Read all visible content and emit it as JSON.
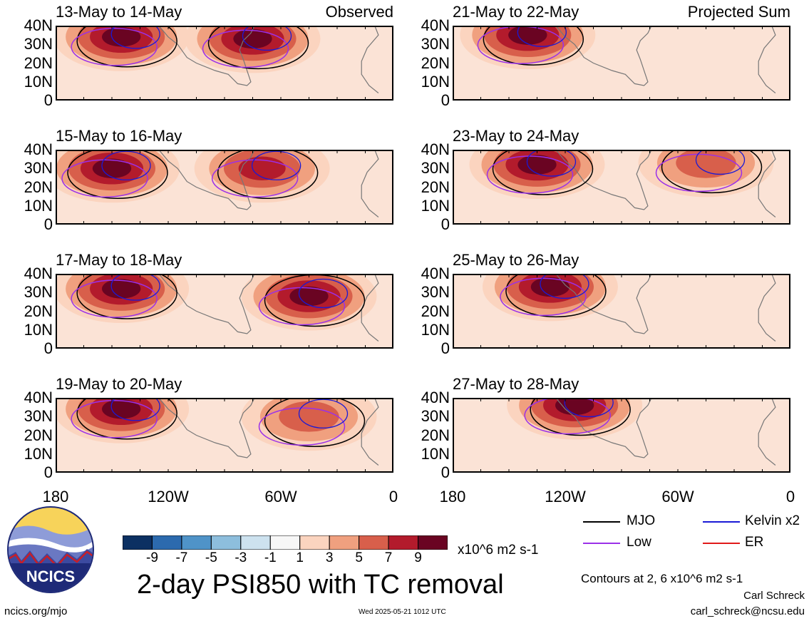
{
  "chart_data": {
    "type": "heatmap",
    "title": "2-day PSI850 with TC removal",
    "units": "x10^6 m2 s-1",
    "contour_note": "Contours at 2, 6 x10^6 m2 s-1",
    "columns": [
      "Observed",
      "Projected Sum"
    ],
    "x_ticks": [
      "180",
      "120W",
      "60W",
      "0"
    ],
    "y_ticks": [
      "40N",
      "30N",
      "20N",
      "10N",
      "0"
    ],
    "xlim": [
      -180,
      0
    ],
    "ylim": [
      0,
      40
    ],
    "colorbar_ticks": [
      "-9",
      "-7",
      "-5",
      "-3",
      "-1",
      "1",
      "3",
      "5",
      "7",
      "9"
    ],
    "colorbar_colors": [
      "#0c3062",
      "#2c6aae",
      "#4f93c8",
      "#8dbedd",
      "#cde2ef",
      "#f7f7f7",
      "#fbd4bf",
      "#f0a07f",
      "#d85f4b",
      "#b31b2c",
      "#6a0422"
    ],
    "contour_legend": [
      {
        "name": "MJO",
        "color": "#000000"
      },
      {
        "name": "Kelvin x2",
        "color": "#1a1ad6"
      },
      {
        "name": "Low",
        "color": "#9b30e8"
      },
      {
        "name": "ER",
        "color": "#e01a1a"
      }
    ],
    "panels": [
      {
        "period": "13-May to 14-May",
        "label": "Observed",
        "anomaly_maxima": [
          {
            "lon": -145,
            "lat": 34,
            "value": 9
          },
          {
            "lon": -75,
            "lat": 33,
            "value": 9
          }
        ]
      },
      {
        "period": "15-May to 16-May",
        "label": "",
        "anomaly_maxima": [
          {
            "lon": -150,
            "lat": 30,
            "value": 9
          },
          {
            "lon": -70,
            "lat": 30,
            "value": 7
          }
        ]
      },
      {
        "period": "17-May to 18-May",
        "label": "",
        "anomaly_maxima": [
          {
            "lon": -145,
            "lat": 32,
            "value": 9
          },
          {
            "lon": -45,
            "lat": 28,
            "value": 9
          }
        ]
      },
      {
        "period": "19-May to 20-May",
        "label": "",
        "anomaly_maxima": [
          {
            "lon": -145,
            "lat": 34,
            "value": 9
          },
          {
            "lon": -45,
            "lat": 30,
            "value": 5
          }
        ]
      },
      {
        "period": "21-May to 22-May",
        "label": "Projected Sum",
        "anomaly_maxima": [
          {
            "lon": -140,
            "lat": 35,
            "value": 9
          }
        ]
      },
      {
        "period": "23-May to 24-May",
        "label": "",
        "anomaly_maxima": [
          {
            "lon": -135,
            "lat": 32,
            "value": 9
          },
          {
            "lon": -45,
            "lat": 33,
            "value": 5
          }
        ]
      },
      {
        "period": "25-May to 26-May",
        "label": "",
        "anomaly_maxima": [
          {
            "lon": -128,
            "lat": 33,
            "value": 9
          }
        ]
      },
      {
        "period": "27-May to 28-May",
        "label": "",
        "anomaly_maxima": [
          {
            "lon": -115,
            "lat": 36,
            "value": 9
          }
        ]
      }
    ]
  },
  "logo": {
    "text": "NCICS"
  },
  "footer": {
    "url": "ncics.org/mjo",
    "timestamp": "Wed 2025-05-21 1012 UTC",
    "author": "Carl Schreck",
    "email": "carl_schreck@ncsu.edu"
  }
}
